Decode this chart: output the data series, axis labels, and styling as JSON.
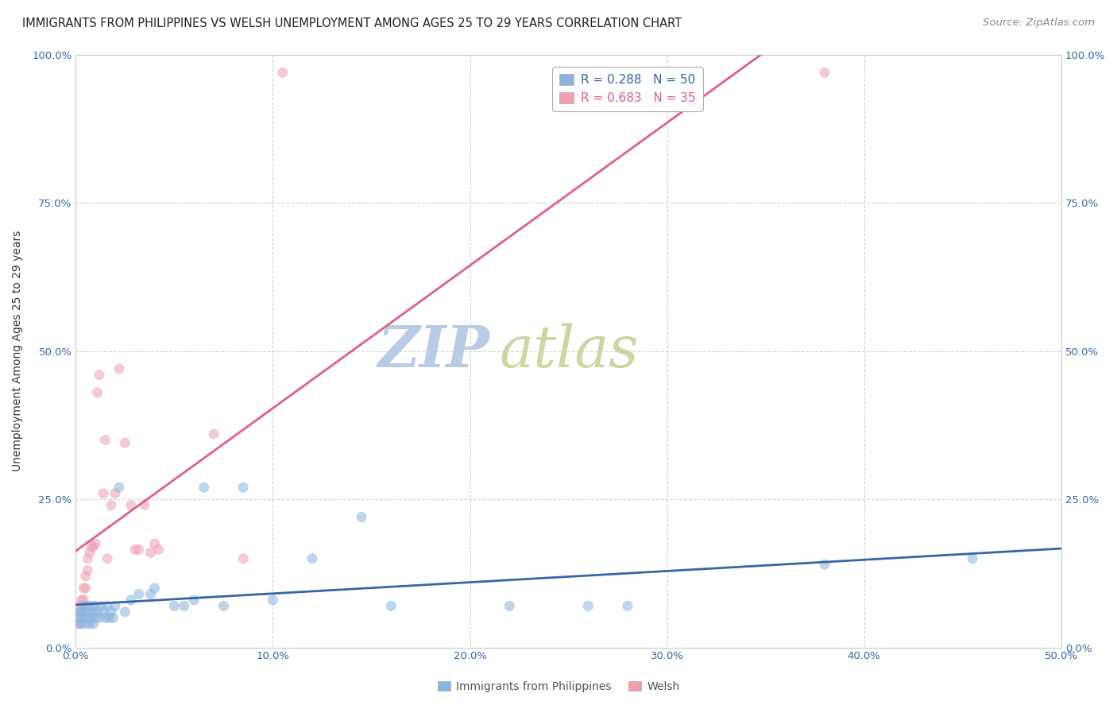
{
  "title": "IMMIGRANTS FROM PHILIPPINES VS WELSH UNEMPLOYMENT AMONG AGES 25 TO 29 YEARS CORRELATION CHART",
  "source": "Source: ZipAtlas.com",
  "ylabel": "Unemployment Among Ages 25 to 29 years",
  "watermark_zip": "ZIP",
  "watermark_atlas": "atlas",
  "blue_R": 0.288,
  "blue_N": 50,
  "pink_R": 0.683,
  "pink_N": 35,
  "blue_label": "Immigrants from Philippines",
  "pink_label": "Welsh",
  "xlim": [
    0.0,
    0.5
  ],
  "ylim": [
    0.0,
    1.0
  ],
  "xticks": [
    0.0,
    0.1,
    0.2,
    0.3,
    0.4,
    0.5
  ],
  "yticks": [
    0.0,
    0.25,
    0.5,
    0.75,
    1.0
  ],
  "xtick_labels": [
    "0.0%",
    "10.0%",
    "20.0%",
    "30.0%",
    "40.0%",
    "50.0%"
  ],
  "ytick_labels": [
    "0.0%",
    "25.0%",
    "50.0%",
    "75.0%",
    "100.0%"
  ],
  "blue_color": "#8ab4e0",
  "pink_color": "#f0a0b0",
  "blue_line_color": "#3864a8",
  "pink_line_color": "#e06080",
  "blue_dots_x": [
    0.001,
    0.002,
    0.002,
    0.003,
    0.003,
    0.004,
    0.004,
    0.005,
    0.005,
    0.006,
    0.006,
    0.007,
    0.007,
    0.008,
    0.008,
    0.009,
    0.009,
    0.01,
    0.01,
    0.011,
    0.012,
    0.013,
    0.014,
    0.015,
    0.016,
    0.017,
    0.018,
    0.019,
    0.02,
    0.022,
    0.025,
    0.028,
    0.032,
    0.038,
    0.04,
    0.05,
    0.055,
    0.06,
    0.065,
    0.075,
    0.085,
    0.1,
    0.12,
    0.145,
    0.16,
    0.22,
    0.26,
    0.28,
    0.38,
    0.455
  ],
  "blue_dots_y": [
    0.05,
    0.04,
    0.06,
    0.04,
    0.06,
    0.05,
    0.07,
    0.04,
    0.06,
    0.05,
    0.07,
    0.04,
    0.06,
    0.05,
    0.07,
    0.04,
    0.06,
    0.05,
    0.07,
    0.06,
    0.05,
    0.07,
    0.06,
    0.05,
    0.07,
    0.05,
    0.06,
    0.05,
    0.07,
    0.27,
    0.06,
    0.08,
    0.09,
    0.09,
    0.1,
    0.07,
    0.07,
    0.08,
    0.27,
    0.07,
    0.27,
    0.08,
    0.15,
    0.22,
    0.07,
    0.07,
    0.07,
    0.07,
    0.14,
    0.15
  ],
  "pink_dots_x": [
    0.001,
    0.002,
    0.002,
    0.003,
    0.003,
    0.004,
    0.004,
    0.005,
    0.005,
    0.006,
    0.006,
    0.007,
    0.008,
    0.009,
    0.01,
    0.011,
    0.012,
    0.014,
    0.015,
    0.016,
    0.018,
    0.02,
    0.022,
    0.025,
    0.028,
    0.03,
    0.032,
    0.035,
    0.038,
    0.04,
    0.042,
    0.07,
    0.085,
    0.105,
    0.38
  ],
  "pink_dots_y": [
    0.04,
    0.05,
    0.07,
    0.06,
    0.08,
    0.08,
    0.1,
    0.1,
    0.12,
    0.13,
    0.15,
    0.16,
    0.17,
    0.17,
    0.175,
    0.43,
    0.46,
    0.26,
    0.35,
    0.15,
    0.24,
    0.26,
    0.47,
    0.345,
    0.24,
    0.165,
    0.165,
    0.24,
    0.16,
    0.175,
    0.165,
    0.36,
    0.15,
    0.97,
    0.97
  ],
  "title_fontsize": 10.5,
  "axis_label_fontsize": 10,
  "tick_fontsize": 9.5,
  "legend_fontsize": 11,
  "source_fontsize": 9.5,
  "watermark_fontsize_zip": 52,
  "watermark_fontsize_atlas": 52,
  "watermark_color_zip": "#b8cce8",
  "watermark_color_atlas": "#c8d8a0",
  "background_color": "#ffffff",
  "grid_color": "#cccccc",
  "grid_style": "--",
  "grid_alpha": 0.8
}
